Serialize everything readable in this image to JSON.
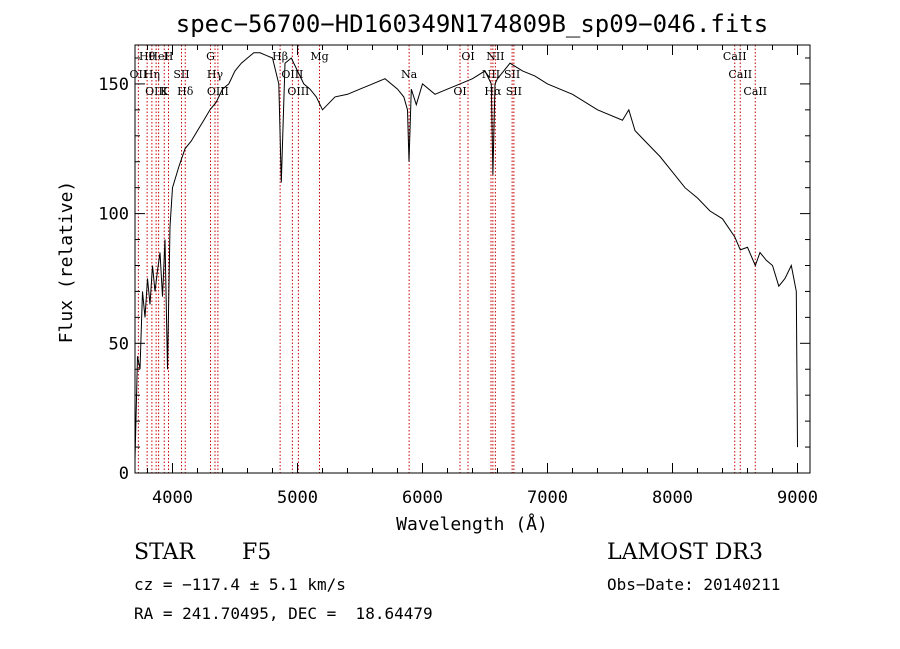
{
  "chart_data": {
    "type": "line",
    "title": "spec−56700−HD160349N174809B_sp09−046.fits",
    "xlabel": "Wavelength (Å)",
    "ylabel": "Flux (relative)",
    "xlim": [
      3700,
      9100
    ],
    "ylim": [
      0,
      165
    ],
    "xticks": [
      4000,
      5000,
      6000,
      7000,
      8000,
      9000
    ],
    "yticks": [
      0,
      50,
      100,
      150
    ],
    "grid": false,
    "line_color": "#000000",
    "marker_color": "#cc0000",
    "series": [
      {
        "name": "flux",
        "x": [
          3700,
          3720,
          3740,
          3760,
          3780,
          3800,
          3820,
          3840,
          3860,
          3880,
          3900,
          3920,
          3940,
          3960,
          3980,
          4000,
          4050,
          4100,
          4150,
          4200,
          4250,
          4300,
          4350,
          4400,
          4450,
          4500,
          4550,
          4600,
          4650,
          4700,
          4750,
          4800,
          4850,
          4870,
          4900,
          4950,
          5000,
          5050,
          5100,
          5150,
          5200,
          5300,
          5400,
          5500,
          5600,
          5700,
          5800,
          5850,
          5880,
          5892,
          5910,
          5950,
          6000,
          6100,
          6200,
          6300,
          6400,
          6500,
          6550,
          6563,
          6580,
          6600,
          6700,
          6800,
          6900,
          7000,
          7200,
          7400,
          7600,
          7650,
          7700,
          7800,
          7900,
          8000,
          8100,
          8200,
          8300,
          8400,
          8498,
          8542,
          8600,
          8662,
          8700,
          8750,
          8800,
          8850,
          8900,
          8950,
          8990,
          9000
        ],
        "values": [
          5,
          45,
          40,
          70,
          60,
          75,
          65,
          80,
          70,
          78,
          85,
          68,
          90,
          40,
          95,
          110,
          118,
          125,
          128,
          132,
          136,
          140,
          143,
          148,
          150,
          155,
          158,
          160,
          162,
          162,
          161,
          160,
          150,
          112,
          158,
          160,
          155,
          150,
          148,
          145,
          140,
          145,
          146,
          148,
          150,
          152,
          148,
          145,
          140,
          120,
          148,
          142,
          150,
          146,
          148,
          150,
          152,
          155,
          150,
          115,
          150,
          152,
          158,
          155,
          153,
          150,
          146,
          140,
          136,
          140,
          132,
          127,
          122,
          116,
          110,
          106,
          101,
          98,
          91,
          86,
          87,
          80,
          85,
          82,
          80,
          72,
          75,
          80,
          70,
          10
        ]
      }
    ],
    "lines": [
      {
        "label": "Hθ",
        "x": 3797
      },
      {
        "label": "OII",
        "x": 3727
      },
      {
        "label": "OIII",
        "x": 3869
      },
      {
        "label": "HeI",
        "x": 3889
      },
      {
        "label": "Hη",
        "x": 3835
      },
      {
        "label": "K",
        "x": 3934
      },
      {
        "label": "H",
        "x": 3968
      },
      {
        "label": "SII",
        "x": 4072
      },
      {
        "label": "Hδ",
        "x": 4102
      },
      {
        "label": "G",
        "x": 4304
      },
      {
        "label": "Hγ",
        "x": 4340
      },
      {
        "label": "OIII",
        "x": 4363
      },
      {
        "label": "Hβ",
        "x": 4861
      },
      {
        "label": "OIII",
        "x": 4959
      },
      {
        "label": "OIII",
        "x": 5007
      },
      {
        "label": "Mg",
        "x": 5176
      },
      {
        "label": "Na",
        "x": 5893
      },
      {
        "label": "OI",
        "x": 6300
      },
      {
        "label": "OI",
        "x": 6364
      },
      {
        "label": "NII",
        "x": 6548
      },
      {
        "label": "Hα",
        "x": 6563
      },
      {
        "label": "NII",
        "x": 6583
      },
      {
        "label": "SII",
        "x": 6717
      },
      {
        "label": "SII",
        "x": 6731
      },
      {
        "label": "CaII",
        "x": 8498
      },
      {
        "label": "CaII",
        "x": 8542
      },
      {
        "label": "CaII",
        "x": 8662
      }
    ]
  },
  "info": {
    "object_class": "STAR",
    "subclass": "F5",
    "survey": "LAMOST DR3",
    "velocity": "cz = −117.4 ± 5.1 km/s",
    "obs_date": "Obs−Date: 20140211",
    "coordinates": "RA = 241.70495, DEC =  18.64479"
  }
}
